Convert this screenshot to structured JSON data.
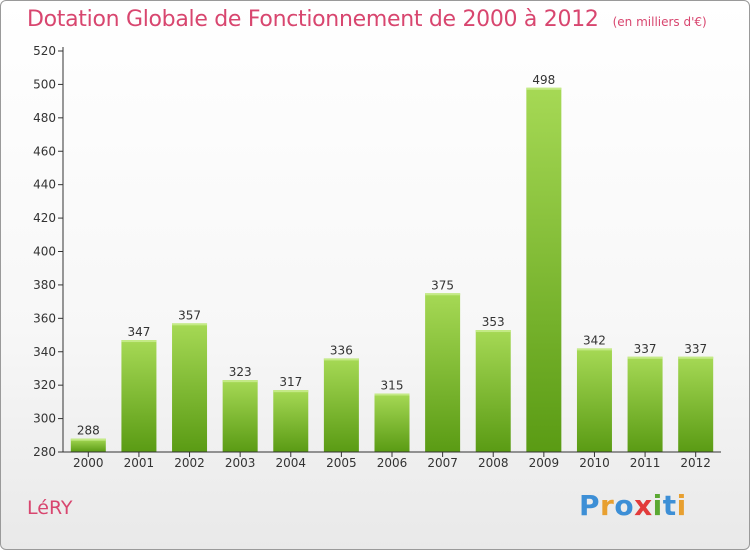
{
  "header": {
    "title": "Dotation Globale de Fonctionnement de 2000 à 2012",
    "unit": "(en milliers d'€)"
  },
  "commune": "LéRY",
  "logo": {
    "letters": [
      "P",
      "r",
      "o",
      "x",
      "i",
      "t",
      "i"
    ],
    "colors": [
      "#3d8fd6",
      "#e8a030",
      "#3d8fd6",
      "#e23b3b",
      "#5aa832",
      "#3d8fd6",
      "#e8a030"
    ]
  },
  "colors": {
    "bar_top": "#a6d955",
    "bar_bottom": "#5a9b14",
    "axis": "#333333",
    "grid": "#d6d6d6"
  },
  "chart_data": {
    "type": "bar",
    "title": "Dotation Globale de Fonctionnement de 2000 à 2012",
    "subtitle": "(en milliers d'€)",
    "categories": [
      "2000",
      "2001",
      "2002",
      "2003",
      "2004",
      "2005",
      "2006",
      "2007",
      "2008",
      "2009",
      "2010",
      "2011",
      "2012"
    ],
    "values": [
      288,
      347,
      357,
      323,
      317,
      336,
      315,
      375,
      353,
      498,
      342,
      337,
      337
    ],
    "value_labels": [
      "288",
      "347",
      "357",
      "323",
      "317",
      "336",
      "315",
      "375",
      "353",
      "498",
      "342",
      "337",
      "337"
    ],
    "ylim": [
      280,
      520
    ],
    "yticks": [
      280,
      300,
      320,
      340,
      360,
      380,
      400,
      420,
      440,
      460,
      480,
      500,
      520
    ],
    "ytick_labels": [
      "280",
      "300",
      "320",
      "340",
      "360",
      "380",
      "400",
      "420",
      "440",
      "460",
      "480",
      "500",
      "520"
    ],
    "grid": false,
    "xlabel": "",
    "ylabel": ""
  }
}
